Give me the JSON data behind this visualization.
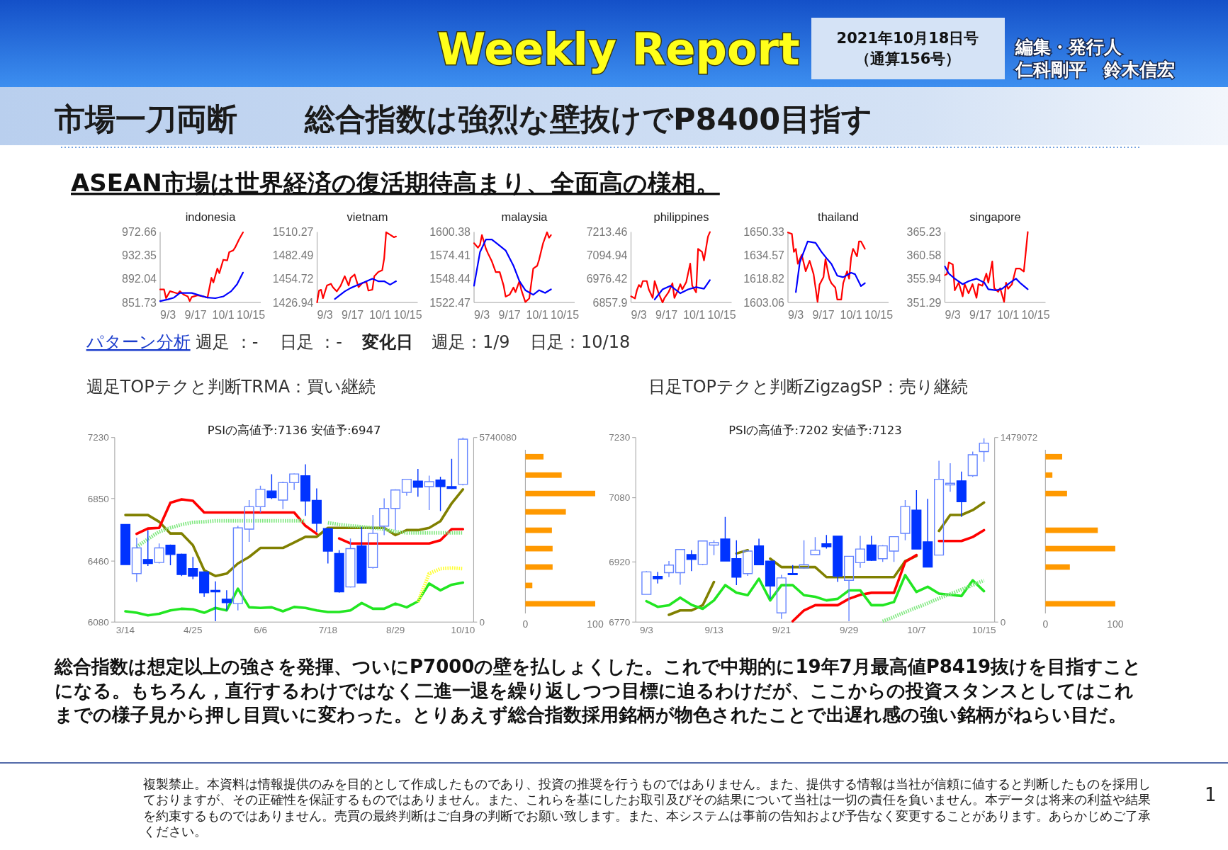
{
  "chart_data": [
    {
      "type": "other",
      "title": "総合指数は強烈な壁抜けでP8400目指す",
      "subtitle": "ASEAN市場は世界経済の復活期待高まり、全面高の様相。",
      "annotations": [
        "Weekly Report",
        "2021年10月18日号",
        "（通算156号）",
        "編集・発行人",
        "仁科剛平　鈴木信宏",
        "市場一刀両断",
        "パターン分析",
        "週足 ：-",
        "日足 ：-",
        "変化日",
        "週足：1/9",
        "日足：10/18",
        "総合指数は想定以上の強さを発揮、ついにP7000の壁を払しょくした。これで中期的に19年7月最高値P8419抜けを目指すことになる。もちろん，直行するわけではなく二進一退を繰り返しつつ目標に迫るわけだが、ここからの投資スタンスとしてはこれまでの様子見から押し目買いに変わった。とりあえず総合指数採用銘柄が物色されたことで出遅れ感の強い銘柄がねらい目だ。",
        "複製禁止。本資料は情報提供のみを目的として作成したものであり、投資の推奨を行うものではありません。また、提供する情報は当社が信頼に値すると判断したものを採用しておりますが、その正確性を保証するものではありません。また、これらを基にしたお取引及びその結果について当社は一切の責任を負いません。本データは将来の利益や結果を約束するものではありません。売買の最終判断はご自身の判断でお願い致します。また、本システムは事前の告知および予告なく変更することがあります。あらかじめご了承ください。",
        "1"
      ]
    },
    {
      "type": "line",
      "title": "indonesia",
      "xlim": [
        "--08-30",
        "--10-20"
      ],
      "xticks": [
        {
          "value": "--09-03",
          "label": "9/3"
        },
        {
          "value": "--09-17",
          "label": "9/17"
        },
        {
          "value": "--10-01",
          "label": "10/1"
        },
        {
          "value": "--10-15",
          "label": "10/15"
        }
      ],
      "ylim": [
        851.73,
        972.66
      ],
      "yticks": [
        851.73,
        892.04,
        932.35,
        972.66
      ],
      "series": [
        {
          "color": "#ff0000",
          "x": [
            "--08-30",
            "--09-01",
            "--09-02",
            "--09-04",
            "--09-06",
            "--09-08",
            "--09-09",
            "--09-11",
            "--09-13",
            "--09-14",
            "--09-15",
            "--09-18",
            "--09-21",
            "--09-23",
            "--09-25",
            "--09-26",
            "--09-28",
            "--09-29",
            "--10-01",
            "--10-03",
            "--10-04",
            "--10-06",
            "--10-07",
            "--10-09",
            "--10-11"
          ],
          "values": [
            874,
            874,
            859,
            871,
            869,
            867,
            871,
            865,
            862,
            854,
            861,
            864,
            862,
            860,
            894,
            886,
            910,
            902,
            925,
            924,
            938,
            941,
            946,
            960,
            972
          ]
        },
        {
          "color": "#0000ff",
          "x": [
            "--08-30",
            "--09-03",
            "--09-06",
            "--09-09",
            "--09-15",
            "--09-18",
            "--09-23",
            "--09-27",
            "--10-01",
            "--10-05",
            "--10-08",
            "--10-11"
          ],
          "values": [
            854,
            857,
            860,
            868,
            868,
            865,
            860,
            859,
            862,
            871,
            883,
            903
          ]
        }
      ]
    },
    {
      "type": "line",
      "title": "vietnam",
      "xlim": [
        "--08-30",
        "--10-20"
      ],
      "xticks": [
        {
          "value": "--09-03",
          "label": "9/3"
        },
        {
          "value": "--09-17",
          "label": "9/17"
        },
        {
          "value": "--10-01",
          "label": "10/1"
        },
        {
          "value": "--10-15",
          "label": "10/15"
        }
      ],
      "ylim": [
        1426.94,
        1510.27
      ],
      "yticks": [
        1426.94,
        1454.72,
        1482.49,
        1510.27
      ],
      "series": [
        {
          "color": "#ff0000",
          "x": [
            "--08-30",
            "--08-31",
            "--09-01",
            "--09-02",
            "--09-04",
            "--09-06",
            "--09-07",
            "--09-09",
            "--09-11",
            "--09-13",
            "--09-15",
            "--09-16",
            "--09-18",
            "--09-20",
            "--09-22",
            "--09-24",
            "--09-25",
            "--09-27",
            "--09-28",
            "--09-30",
            "--10-02",
            "--10-03",
            "--10-04",
            "--10-06",
            "--10-08",
            "--10-09"
          ],
          "values": [
            1427,
            1441,
            1442,
            1432,
            1447,
            1449,
            1445,
            1440,
            1447,
            1458,
            1447,
            1456,
            1460,
            1445,
            1450,
            1451,
            1441,
            1442,
            1458,
            1463,
            1465,
            1479,
            1510,
            1507,
            1504,
            1505
          ]
        },
        {
          "color": "#0000ff",
          "x": [
            "--09-08",
            "--09-13",
            "--09-16",
            "--09-19",
            "--09-22",
            "--09-27",
            "--09-30",
            "--10-03",
            "--10-06",
            "--10-09"
          ],
          "values": [
            1431,
            1440,
            1444,
            1447,
            1450,
            1455,
            1452,
            1452,
            1448,
            1452
          ]
        }
      ]
    },
    {
      "type": "line",
      "title": "malaysia",
      "xlim": [
        "--08-30",
        "--10-20"
      ],
      "xticks": [
        {
          "value": "--09-03",
          "label": "9/3"
        },
        {
          "value": "--09-17",
          "label": "9/17"
        },
        {
          "value": "--10-01",
          "label": "10/1"
        },
        {
          "value": "--10-15",
          "label": "10/15"
        }
      ],
      "ylim": [
        1522.47,
        1600.38
      ],
      "yticks": [
        1522.47,
        1548.44,
        1574.41,
        1600.38
      ],
      "series": [
        {
          "color": "#ff0000",
          "x": [
            "--08-30",
            "--09-01",
            "--09-02",
            "--09-03",
            "--09-05",
            "--09-06",
            "--09-08",
            "--09-10",
            "--09-12",
            "--09-14",
            "--09-15",
            "--09-17",
            "--09-19",
            "--09-20",
            "--09-22",
            "--09-23",
            "--09-25",
            "--09-27",
            "--09-29",
            "--10-01",
            "--10-02",
            "--10-04",
            "--10-06",
            "--10-07",
            "--10-08"
          ],
          "values": [
            1588,
            1583,
            1586,
            1597,
            1582,
            1577,
            1568,
            1556,
            1556,
            1541,
            1529,
            1531,
            1539,
            1534,
            1546,
            1536,
            1523,
            1527,
            1560,
            1563,
            1570,
            1588,
            1600,
            1594,
            1597
          ]
        },
        {
          "color": "#0000ff",
          "x": [
            "--08-30",
            "--09-02",
            "--09-05",
            "--09-08",
            "--09-11",
            "--09-15",
            "--09-19",
            "--09-22",
            "--09-25",
            "--09-29",
            "--10-02",
            "--10-05",
            "--10-08"
          ],
          "values": [
            1541,
            1578,
            1592,
            1592,
            1587,
            1580,
            1563,
            1546,
            1536,
            1531,
            1536,
            1533,
            1537
          ]
        }
      ]
    },
    {
      "type": "line",
      "title": "philippines",
      "xlim": [
        "--08-30",
        "--10-20"
      ],
      "xticks": [
        {
          "value": "--09-03",
          "label": "9/3"
        },
        {
          "value": "--09-17",
          "label": "9/17"
        },
        {
          "value": "--10-01",
          "label": "10/1"
        },
        {
          "value": "--10-15",
          "label": "10/15"
        }
      ],
      "ylim": [
        6857.9,
        7213.46
      ],
      "yticks": [
        6857.9,
        6976.42,
        7094.94,
        7213.46
      ],
      "series": [
        {
          "color": "#ff0000",
          "x": [
            "--08-30",
            "--09-01",
            "--09-02",
            "--09-03",
            "--09-04",
            "--09-05",
            "--09-07",
            "--09-08",
            "--09-10",
            "--09-11",
            "--09-13",
            "--09-15",
            "--09-16",
            "--09-18",
            "--09-20",
            "--09-21",
            "--09-23",
            "--09-24",
            "--09-25",
            "--09-27",
            "--09-29",
            "--09-30",
            "--10-02",
            "--10-03",
            "--10-05",
            "--10-06",
            "--10-08",
            "--10-09"
          ],
          "values": [
            6889,
            6878,
            6920,
            6946,
            6935,
            6966,
            6966,
            6924,
            6881,
            6966,
            6904,
            6858,
            6881,
            6909,
            6955,
            6881,
            6924,
            6950,
            6924,
            6961,
            7054,
            6943,
            6909,
            7128,
            7113,
            7070,
            7190,
            7213
          ]
        },
        {
          "color": "#0000ff",
          "x": [
            "--09-11",
            "--09-15",
            "--09-19",
            "--09-24",
            "--09-28",
            "--10-02",
            "--10-06",
            "--10-09"
          ],
          "values": [
            6873,
            6924,
            6942,
            6904,
            6924,
            6935,
            6927,
            6971
          ]
        }
      ]
    },
    {
      "type": "line",
      "title": "thailand",
      "xlim": [
        "--08-30",
        "--10-20"
      ],
      "xticks": [
        {
          "value": "--09-03",
          "label": "9/3"
        },
        {
          "value": "--09-17",
          "label": "9/17"
        },
        {
          "value": "--10-01",
          "label": "10/1"
        },
        {
          "value": "--10-15",
          "label": "10/15"
        }
      ],
      "ylim": [
        1603.06,
        1650.33
      ],
      "yticks": [
        1603.06,
        1618.82,
        1634.57,
        1650.33
      ],
      "series": [
        {
          "color": "#ff0000",
          "x": [
            "--08-30",
            "--09-01",
            "--09-02",
            "--09-03",
            "--09-04",
            "--09-06",
            "--09-08",
            "--09-10",
            "--09-12",
            "--09-14",
            "--09-15",
            "--09-17",
            "--09-18",
            "--09-20",
            "--09-21",
            "--09-23",
            "--09-24",
            "--09-26",
            "--09-27",
            "--09-29",
            "--09-30",
            "--10-01",
            "--10-02",
            "--10-04",
            "--10-05",
            "--10-06",
            "--10-08"
          ],
          "values": [
            1650,
            1649,
            1637,
            1639,
            1629,
            1635,
            1624,
            1631,
            1622,
            1603.5,
            1615,
            1620,
            1632,
            1619,
            1616,
            1613,
            1605,
            1605,
            1616,
            1624,
            1619,
            1633,
            1639,
            1634,
            1644,
            1644,
            1639
          ]
        },
        {
          "color": "#0000ff",
          "x": [
            "--09-03",
            "--09-05",
            "--09-09",
            "--09-13",
            "--09-16",
            "--09-19",
            "--09-21",
            "--09-24",
            "--09-27",
            "--10-01",
            "--10-03",
            "--10-06",
            "--10-08"
          ],
          "values": [
            1610,
            1630,
            1644,
            1643,
            1637,
            1632,
            1629,
            1621,
            1620,
            1623,
            1622,
            1614,
            1616
          ]
        }
      ]
    },
    {
      "type": "line",
      "title": "singapore",
      "xlim": [
        "--08-30",
        "--10-20"
      ],
      "xticks": [
        {
          "value": "--09-03",
          "label": "9/3"
        },
        {
          "value": "--09-17",
          "label": "9/17"
        },
        {
          "value": "--10-01",
          "label": "10/1"
        },
        {
          "value": "--10-15",
          "label": "10/15"
        }
      ],
      "ylim": [
        351.29,
        365.23
      ],
      "yticks": [
        351.29,
        355.94,
        360.58,
        365.23
      ],
      "series": [
        {
          "color": "#ff0000",
          "x": [
            "--08-30",
            "--08-31",
            "--09-01",
            "--09-03",
            "--09-04",
            "--09-06",
            "--09-08",
            "--09-09",
            "--09-11",
            "--09-13",
            "--09-15",
            "--09-16",
            "--09-18",
            "--09-20",
            "--09-21",
            "--09-23",
            "--09-24",
            "--09-26",
            "--09-27",
            "--09-29",
            "--09-30",
            "--10-01",
            "--10-03",
            "--10-05",
            "--10-07",
            "--10-09",
            "--10-11"
          ],
          "values": [
            356.7,
            356.9,
            359.2,
            358.8,
            353.7,
            355.2,
            352.5,
            354.9,
            353.1,
            354.9,
            352.2,
            354.9,
            354.6,
            357,
            355.2,
            359.4,
            354.1,
            353.4,
            354.1,
            351.4,
            355.2,
            354,
            354.9,
            358,
            358,
            357.4,
            365.2
          ]
        },
        {
          "color": "#0000ff",
          "x": [
            "--08-30",
            "--09-01",
            "--09-04",
            "--09-08",
            "--09-11",
            "--09-15",
            "--09-19",
            "--09-21",
            "--09-25",
            "--09-28",
            "--10-02",
            "--10-05",
            "--10-07",
            "--10-11"
          ],
          "values": [
            358.4,
            357,
            356,
            354.9,
            355.5,
            356,
            355.2,
            353.9,
            353.7,
            354,
            355.2,
            356,
            355.2,
            353.9
          ]
        }
      ]
    },
    {
      "type": "candlestick",
      "title": "週足TOPテクと判断TRMA：買い継続",
      "subtitle": "PSIの高値予:7136 安値予:6947",
      "categories": [
        "3/14",
        null,
        null,
        null,
        null,
        null,
        "4/25",
        null,
        null,
        null,
        null,
        null,
        "6/6",
        null,
        null,
        null,
        null,
        null,
        "7/18",
        null,
        null,
        null,
        null,
        null,
        "8/29",
        null,
        null,
        null,
        null,
        null,
        "10/10"
      ],
      "ylim": [
        6080,
        7230
      ],
      "yticks": [
        6080,
        6460,
        6850,
        7230
      ],
      "y2lim": [
        0,
        5740080
      ],
      "y2ticks": [
        {
          "value": 0,
          "label": "0"
        },
        5740080
      ],
      "colors": [
        "#0033ff",
        "#6685ff",
        "#0033ff",
        "#6685ff",
        "#0033ff",
        "#0033ff",
        "#0033ff",
        "#0033ff",
        "#0033ff",
        "#0033ff",
        "#6685ff",
        "#6685ff",
        "#6685ff",
        "#0033ff",
        "#6685ff",
        "#6685ff",
        "#0033ff",
        "#0033ff",
        "#0033ff",
        "#0033ff",
        "#6685ff",
        "#0033ff",
        "#6685ff",
        "#6685ff",
        "#6685ff",
        "#6685ff",
        "#0033ff",
        "#6685ff",
        "#0033ff",
        "#0033ff",
        "#6685ff"
      ],
      "ohlc": [
        [
          6688,
          6688,
          6438,
          6438
        ],
        [
          6382,
          6605,
          6330,
          6542
        ],
        [
          6470,
          6653,
          6430,
          6445
        ],
        [
          6451,
          6570,
          6445,
          6542
        ],
        [
          6559,
          6563,
          6434,
          6501
        ],
        [
          6503,
          6507,
          6367,
          6376
        ],
        [
          6413,
          6486,
          6347,
          6367
        ],
        [
          6392,
          6397,
          6236,
          6263
        ],
        [
          6278,
          6334,
          6085,
          6268
        ],
        [
          6222,
          6278,
          6153,
          6201
        ],
        [
          6195,
          6680,
          6153,
          6667
        ],
        [
          6659,
          6840,
          6580,
          6799
        ],
        [
          6799,
          6930,
          6763,
          6907
        ],
        [
          6897,
          7001,
          6847,
          6855
        ],
        [
          6840,
          6955,
          6784,
          6949
        ],
        [
          6949,
          7007,
          6903,
          7003
        ],
        [
          6992,
          7063,
          6742,
          6834
        ],
        [
          6838,
          6913,
          6642,
          6695
        ],
        [
          6663,
          6667,
          6445,
          6522
        ],
        [
          6507,
          6528,
          6263,
          6268
        ],
        [
          6299,
          6601,
          6295,
          6538
        ],
        [
          6555,
          6674,
          6320,
          6324
        ],
        [
          6420,
          6747,
          6413,
          6632
        ],
        [
          6678,
          6851,
          6622,
          6788
        ],
        [
          6788,
          6907,
          6653,
          6903
        ],
        [
          6888,
          6972,
          6868,
          6970
        ],
        [
          6959,
          7034,
          6861,
          6920
        ],
        [
          6924,
          6992,
          6778,
          6955
        ],
        [
          6965,
          6986,
          6772,
          6924
        ],
        [
          6924,
          7097,
          6909,
          6913
        ],
        [
          6938,
          7230,
          6932,
          7220
        ]
      ],
      "series": [
        {
          "type": "line",
          "color": "#808000",
          "values": [
            6747,
            6747,
            6747,
            6705,
            6632,
            6632,
            6559,
            6403,
            6367,
            6382,
            6445,
            6486,
            6542,
            6542,
            6542,
            6576,
            6611,
            6611,
            6667,
            6667,
            6667,
            6667,
            6667,
            6667,
            6622,
            6653,
            6653,
            6667,
            6709,
            6820,
            6907
          ]
        },
        {
          "type": "line",
          "color": "#ff0000",
          "values": [
            null,
            6630,
            6663,
            6667,
            6824,
            6845,
            6836,
            6763,
            6763,
            6763,
            6763,
            6763,
            6763,
            6763,
            6763,
            6763,
            6680,
            6630,
            null,
            6601,
            6570,
            6570,
            6570,
            6570,
            6570,
            6570,
            6570,
            6570,
            6590,
            6659,
            6659
          ]
        },
        {
          "type": "line",
          "color": "#22e622",
          "values": [
            6147,
            6138,
            6122,
            6132,
            6153,
            6163,
            6159,
            6138,
            6168,
            6153,
            6288,
            6172,
            6168,
            6172,
            6147,
            6174,
            6168,
            6153,
            6143,
            6143,
            6153,
            6199,
            6163,
            6163,
            6195,
            6172,
            6209,
            6320,
            6278,
            6313,
            6326
          ]
        },
        {
          "type": "line",
          "color": "#80e880",
          "line_style": "dotted",
          "values": [
            null,
            6549,
            6597,
            6643,
            6667,
            6688,
            6701,
            6705,
            6711,
            6711,
            6711,
            6711,
            6711,
            6711,
            6711,
            6711,
            6711,
            null,
            6699,
            6688,
            6680,
            6674,
            6667,
            6659,
            6643,
            6636,
            6636,
            6636,
            6636,
            6636,
            6636
          ]
        },
        {
          "type": "line",
          "color": "#ffff33",
          "line_style": "dotted",
          "values": [
            null,
            null,
            null,
            null,
            null,
            null,
            null,
            null,
            null,
            null,
            null,
            null,
            null,
            null,
            null,
            null,
            null,
            null,
            null,
            null,
            null,
            null,
            null,
            null,
            null,
            null,
            6205,
            6382,
            6413,
            6417,
            6413
          ]
        }
      ]
    },
    {
      "type": "bar",
      "orientation": "horizontal",
      "categories": [
        null,
        null,
        null,
        null,
        null,
        null,
        null,
        null,
        null
      ],
      "values": [
        26,
        52,
        100,
        58,
        38,
        39,
        39,
        10,
        100
      ],
      "color": "#ff9900",
      "xlim": [
        0,
        100
      ],
      "xticks": [
        {
          "value": 0,
          "label": "0"
        },
        100
      ],
      "tick_labels": "x"
    },
    {
      "type": "candlestick",
      "title": "日足TOPテクと判断ZigzagSP：売り継続",
      "subtitle": "PSIの高値予:7202 安値予:7123",
      "categories": [
        "9/3",
        null,
        null,
        null,
        null,
        null,
        "9/13",
        null,
        null,
        null,
        null,
        null,
        "9/21",
        null,
        null,
        null,
        null,
        null,
        "9/29",
        null,
        null,
        null,
        null,
        null,
        "10/7",
        null,
        null,
        null,
        null,
        null,
        "10/15"
      ],
      "ylim": [
        6770,
        7230
      ],
      "yticks": [
        6770,
        6920,
        7080,
        7230
      ],
      "y2lim": [
        0,
        1479072
      ],
      "y2ticks": [
        {
          "value": 0,
          "label": "0"
        },
        1479072
      ],
      "colors": [
        "#6685ff",
        "#0033ff",
        "#6685ff",
        "#6685ff",
        "#0033ff",
        "#6685ff",
        "#6685ff",
        "#0033ff",
        "#0033ff",
        "#6685ff",
        "#0033ff",
        "#0033ff",
        "#6685ff",
        "#0033ff",
        "#6685ff",
        "#6685ff",
        "#0033ff",
        "#0033ff",
        "#6685ff",
        "#6685ff",
        "#0033ff",
        "#6685ff",
        "#6685ff",
        "#6685ff",
        "#0033ff",
        "#0033ff",
        "#6685ff",
        "#6685ff",
        "#0033ff",
        "#6685ff",
        "#6685ff"
      ],
      "ohlc": [
        [
          6839,
          6897,
          6839,
          6895
        ],
        [
          6884,
          6895,
          6866,
          6878
        ],
        [
          6893,
          6922,
          6882,
          6912
        ],
        [
          6893,
          6951,
          6863,
          6951
        ],
        [
          6938,
          6949,
          6897,
          6926
        ],
        [
          6914,
          6973,
          6912,
          6972
        ],
        [
          6962,
          6974,
          6937,
          6968
        ],
        [
          6977,
          7032,
          6922,
          6922
        ],
        [
          6928,
          6974,
          6862,
          6882
        ],
        [
          6891,
          6949,
          6885,
          6947
        ],
        [
          6960,
          6978,
          6912,
          6913
        ],
        [
          6922,
          6922,
          6828,
          6860
        ],
        [
          6793,
          6888,
          6778,
          6880
        ],
        [
          6891,
          6912,
          6888,
          6889
        ],
        [
          6905,
          6974,
          6903,
          6913
        ],
        [
          6938,
          6982,
          6938,
          6949
        ],
        [
          6965,
          6987,
          6953,
          6958
        ],
        [
          6984,
          6984,
          6870,
          6884
        ],
        [
          6874,
          6934,
          6772,
          6934
        ],
        [
          6918,
          6985,
          6905,
          6952
        ],
        [
          6962,
          6985,
          6922,
          6924
        ],
        [
          6928,
          6962,
          6920,
          6960
        ],
        [
          6947,
          6983,
          6920,
          6983
        ],
        [
          6991,
          7074,
          6974,
          7058
        ],
        [
          7049,
          7099,
          6952,
          6952
        ],
        [
          6970,
          7077,
          6907,
          6907
        ],
        [
          6937,
          7172,
          6937,
          7126
        ],
        [
          7112,
          7166,
          7095,
          7116
        ],
        [
          7122,
          7145,
          7032,
          7070
        ],
        [
          7135,
          7195,
          7132,
          7187
        ],
        [
          7195,
          7228,
          7170,
          7216
        ]
      ],
      "series": [
        {
          "type": "line",
          "color": "#808000",
          "values": [
            null,
            null,
            6788,
            6799,
            6799,
            6812,
            6870,
            null,
            6941,
            6949,
            null,
            6928,
            6907,
            6907,
            6907,
            6907,
            6882,
            6882,
            6882,
            6882,
            6882,
            6882,
            6882,
            6922,
            6935,
            null,
            6997,
            7037,
            7037,
            7049,
            7068
          ]
        },
        {
          "type": "line",
          "color": "#ff0000",
          "values": [
            null,
            null,
            null,
            null,
            null,
            null,
            null,
            null,
            null,
            null,
            null,
            null,
            null,
            6772,
            6799,
            6812,
            6812,
            6812,
            6828,
            6838,
            6843,
            6843,
            6843,
            6920,
            6937,
            null,
            6972,
            6972,
            6972,
            6982,
            6999
          ]
        },
        {
          "type": "line",
          "color": "#22e622",
          "values": [
            6822,
            6808,
            6812,
            6831,
            6813,
            6803,
            6824,
            6862,
            6843,
            6837,
            6878,
            6824,
            6862,
            6862,
            6837,
            6833,
            6824,
            6828,
            6849,
            6849,
            6812,
            6812,
            6820,
            6887,
            6845,
            6858,
            6841,
            6838,
            6835,
            6874,
            6847
          ]
        },
        {
          "type": "line",
          "color": "#80e880",
          "line_style": "dotted",
          "values": [
            null,
            null,
            null,
            null,
            null,
            null,
            null,
            null,
            null,
            null,
            null,
            null,
            null,
            null,
            null,
            null,
            null,
            null,
            null,
            null,
            null,
            6772,
            6783,
            6795,
            6806,
            6817,
            6829,
            6840,
            6851,
            6862,
            6874
          ]
        }
      ]
    },
    {
      "type": "bar",
      "orientation": "horizontal",
      "categories": [
        null,
        null,
        null,
        null,
        null,
        null,
        null,
        null,
        null
      ],
      "values": [
        24,
        10,
        31,
        null,
        75,
        100,
        35,
        null,
        100
      ],
      "color": "#ff9900",
      "xlim": [
        0,
        100
      ],
      "xticks": [
        {
          "value": 0,
          "label": "0"
        },
        100
      ],
      "tick_labels": "x"
    }
  ]
}
